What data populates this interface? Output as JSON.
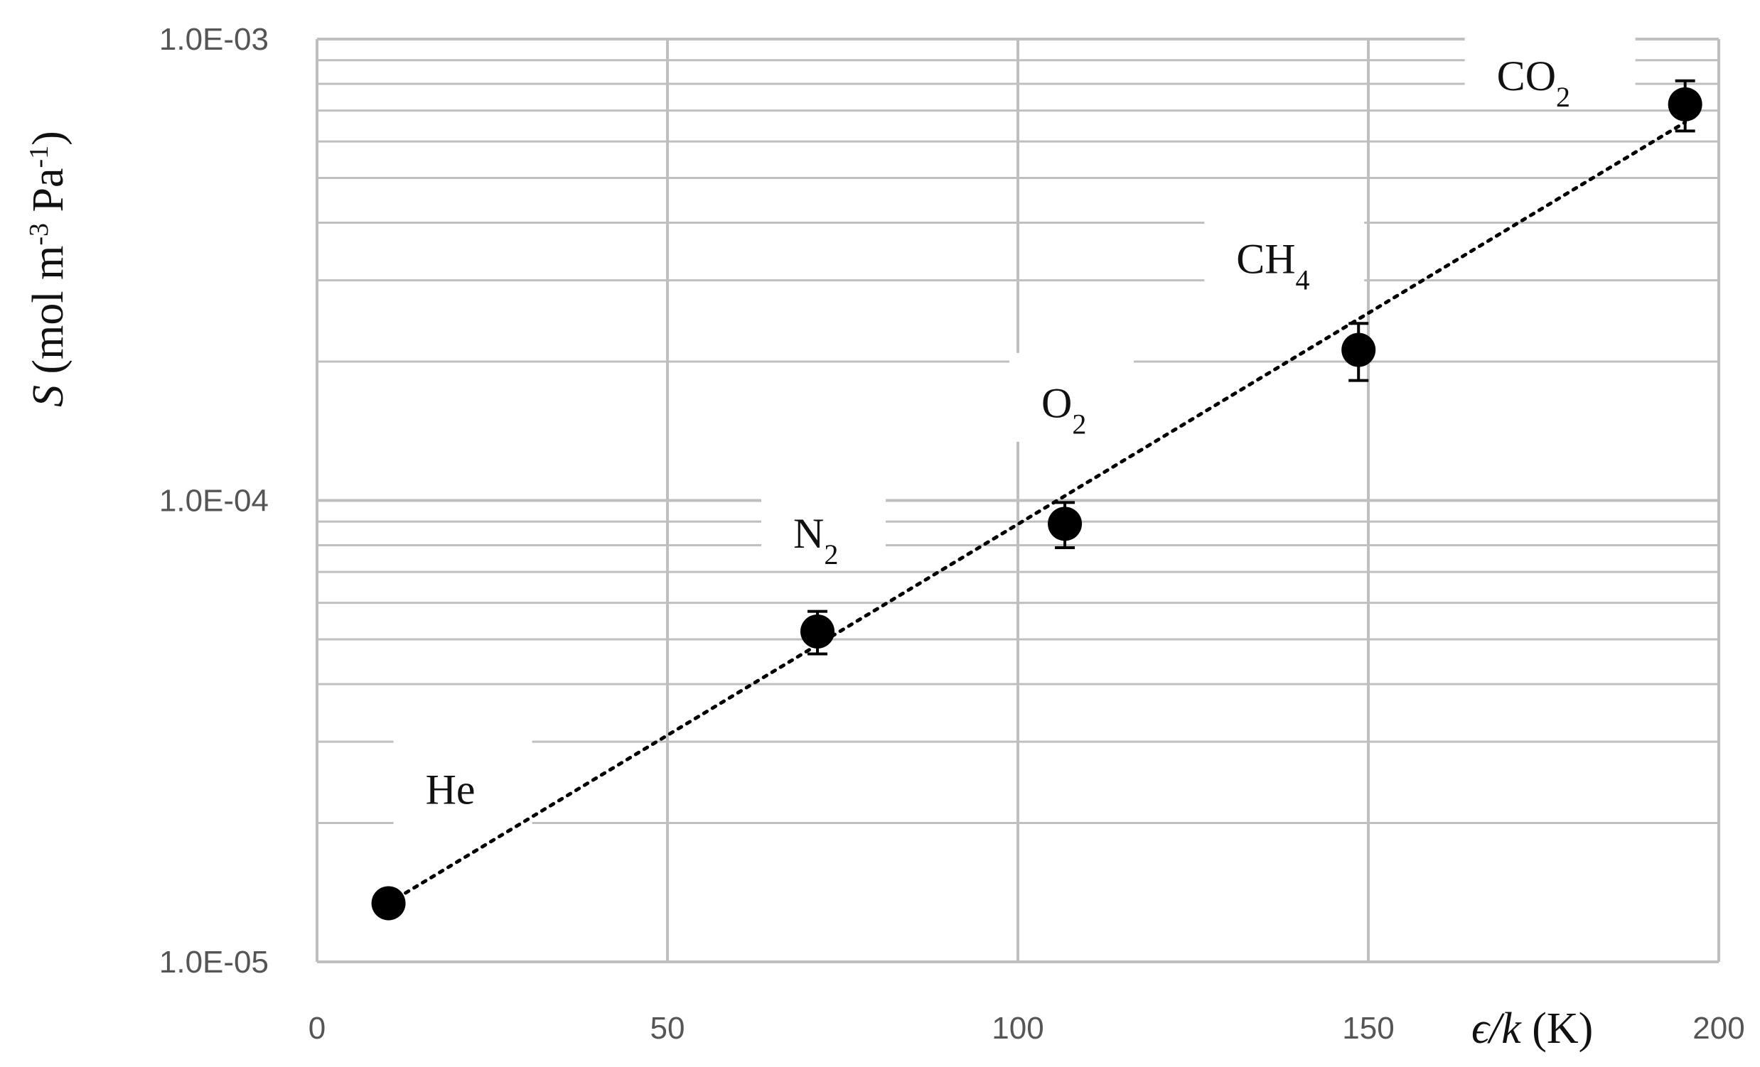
{
  "chart_data": {
    "type": "scatter",
    "xlabel": {
      "var": "ϵ/k",
      "unit": " (K)"
    },
    "ylabel": {
      "var": "S",
      "pre": " (mol m",
      "sup1": "-3",
      "mid": " Pa",
      "sup2": "-1",
      "post": ")"
    },
    "xlim": [
      0,
      200
    ],
    "ylim": [
      1e-05,
      0.001
    ],
    "y_scale": "log",
    "x_ticks": [
      0,
      50,
      100,
      150,
      200
    ],
    "x_tick_labels": [
      "0",
      "50",
      "100",
      "150",
      "200"
    ],
    "y_ticks": [
      1e-05,
      0.0001,
      0.001
    ],
    "y_tick_labels": [
      "1.0E-05",
      "1.0E-04",
      "1.0E-03"
    ],
    "grid": "major and minor",
    "marker_color": "#000000",
    "grid_color": "#bfbfbf",
    "points": [
      {
        "label": {
          "base": "He",
          "sub": ""
        },
        "x": 10.2,
        "y": 1.34e-05,
        "err": 0
      },
      {
        "label": {
          "base": "N",
          "sub": "2"
        },
        "x": 71.4,
        "y": 5.2e-05,
        "err": 5.5e-06
      },
      {
        "label": {
          "base": "O",
          "sub": "2"
        },
        "x": 106.7,
        "y": 8.9e-05,
        "err": 1e-05
      },
      {
        "label": {
          "base": "CH",
          "sub": "4"
        },
        "x": 148.6,
        "y": 0.000212,
        "err": 3e-05
      },
      {
        "label": {
          "base": "CO",
          "sub": "2"
        },
        "x": 195.2,
        "y": 0.000722,
        "err": 9e-05
      }
    ],
    "trendline": {
      "type": "exponential",
      "style": "dotted",
      "x_range": [
        10.2,
        195.2
      ],
      "y_range": [
        1.34e-05,
        0.00066
      ]
    }
  }
}
